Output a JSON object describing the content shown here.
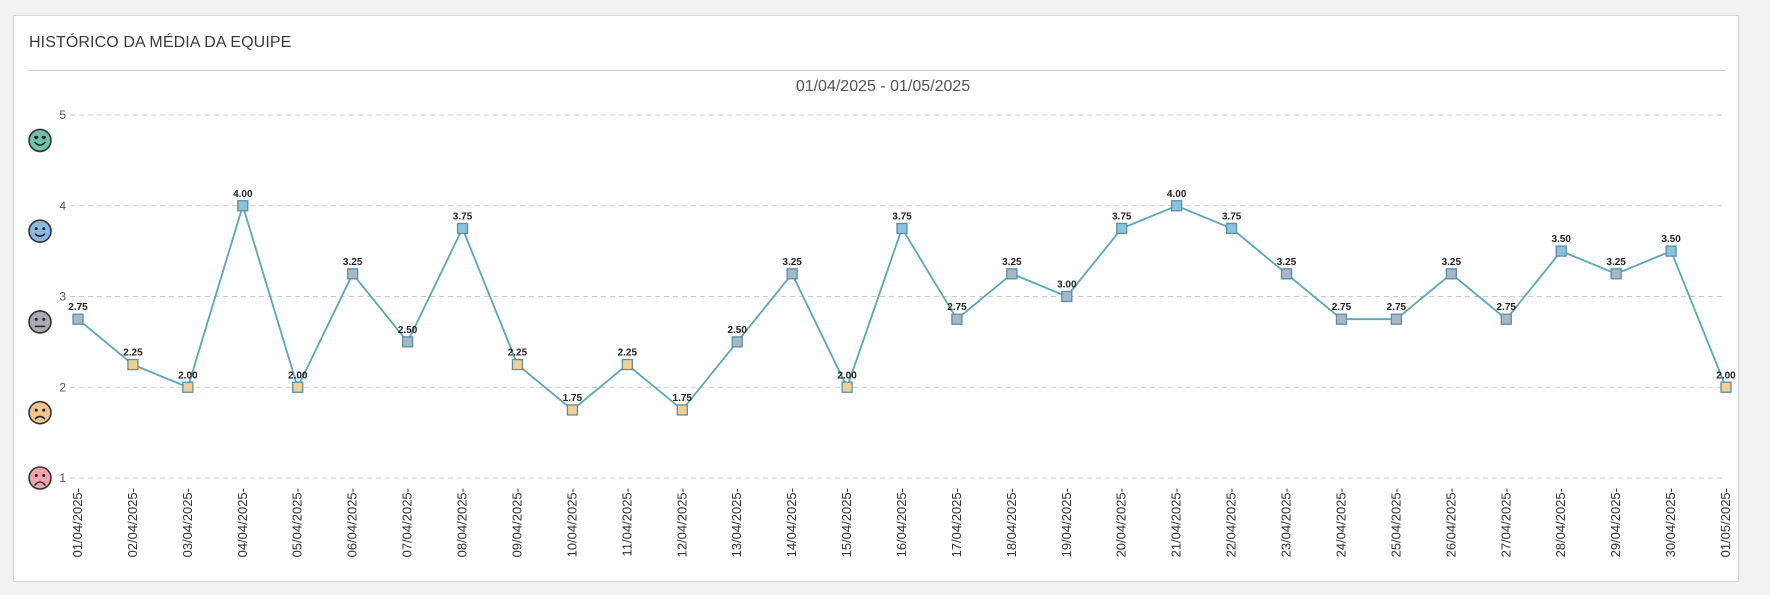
{
  "panel": {
    "title": "HISTÓRICO DA MÉDIA DA EQUIPE"
  },
  "chart_data": {
    "type": "line",
    "title": "01/04/2025 - 01/05/2025",
    "xlabel": "",
    "ylabel": "",
    "ylim": [
      1,
      5
    ],
    "y_ticks": [
      "1",
      "2",
      "3",
      "4",
      "5"
    ],
    "grid": true,
    "legend": "none",
    "mood_icons": [
      {
        "level": 5,
        "name": "very-happy-face-icon",
        "color": "#6fc3a8"
      },
      {
        "level": 4,
        "name": "happy-face-icon",
        "color": "#8ab8e0"
      },
      {
        "level": 3,
        "name": "neutral-face-icon",
        "color": "#a9a9b3"
      },
      {
        "level": 2,
        "name": "sad-face-icon",
        "color": "#f2c58e"
      },
      {
        "level": 1,
        "name": "very-sad-face-icon",
        "color": "#f0a3aa"
      }
    ],
    "colors": {
      "line": "#5aa7b8",
      "marker_high": "#8cc3da",
      "marker_mid": "#a6b8c6",
      "marker_low": "#f2cf95",
      "grid": "#c8c8c8"
    },
    "categories": [
      "01/04/2025",
      "02/04/2025",
      "03/04/2025",
      "04/04/2025",
      "05/04/2025",
      "06/04/2025",
      "07/04/2025",
      "08/04/2025",
      "09/04/2025",
      "10/04/2025",
      "11/04/2025",
      "12/04/2025",
      "13/04/2025",
      "14/04/2025",
      "15/04/2025",
      "16/04/2025",
      "17/04/2025",
      "18/04/2025",
      "19/04/2025",
      "20/04/2025",
      "21/04/2025",
      "22/04/2025",
      "23/04/2025",
      "24/04/2025",
      "25/04/2025",
      "26/04/2025",
      "27/04/2025",
      "28/04/2025",
      "29/04/2025",
      "30/04/2025",
      "01/05/2025"
    ],
    "values": [
      2.75,
      2.25,
      2.0,
      4.0,
      2.0,
      3.25,
      2.5,
      3.75,
      2.25,
      1.75,
      2.25,
      1.75,
      2.5,
      3.25,
      2.0,
      3.75,
      2.75,
      3.25,
      3.0,
      3.75,
      4.0,
      3.75,
      3.25,
      2.75,
      2.75,
      3.25,
      2.75,
      3.5,
      3.25,
      3.5,
      2.0
    ],
    "value_labels": [
      "2.75",
      "2.25",
      "2.00",
      "4.00",
      "2.00",
      "3.25",
      "2.50",
      "3.75",
      "2.25",
      "1.75",
      "2.25",
      "1.75",
      "2.50",
      "3.25",
      "2.00",
      "3.75",
      "2.75",
      "3.25",
      "3.00",
      "3.75",
      "4.00",
      "3.75",
      "3.25",
      "2.75",
      "2.75",
      "3.25",
      "2.75",
      "3.50",
      "3.25",
      "3.50",
      "2.00"
    ],
    "tick_suffix": "-"
  }
}
